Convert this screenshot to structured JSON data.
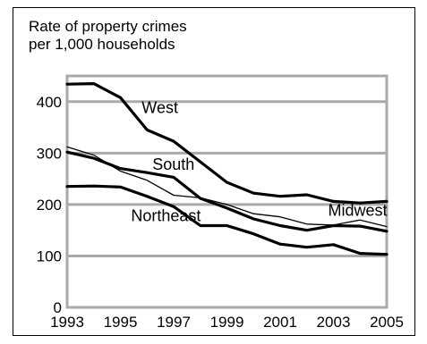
{
  "chart_data": {
    "type": "line",
    "title": "",
    "ylabel_lines": [
      "Rate of property crimes",
      "per 1,000 households"
    ],
    "xlabel": "",
    "x": [
      1993,
      1994,
      1995,
      1996,
      1997,
      1998,
      1999,
      2000,
      2001,
      2002,
      2003,
      2004,
      2005
    ],
    "x_ticks": [
      "1993",
      "1995",
      "1997",
      "1999",
      "2001",
      "2003",
      "2005"
    ],
    "y_ticks": [
      "0",
      "100",
      "200",
      "300",
      "400"
    ],
    "ylim": [
      0,
      450
    ],
    "xlim": [
      1993,
      2005
    ],
    "grid": true,
    "series": [
      {
        "name": "West",
        "style": "thick",
        "values": [
          434,
          435,
          408,
          345,
          323,
          283,
          243,
          222,
          216,
          219,
          206,
          203,
          206
        ]
      },
      {
        "name": "South",
        "style": "thick",
        "values": [
          302,
          290,
          270,
          262,
          253,
          212,
          193,
          172,
          159,
          150,
          159,
          158,
          148
        ]
      },
      {
        "name": "Midwest",
        "style": "thin",
        "values": [
          312,
          296,
          265,
          247,
          218,
          213,
          200,
          182,
          176,
          162,
          160,
          170,
          157
        ]
      },
      {
        "name": "Northeast",
        "style": "thick",
        "values": [
          235,
          236,
          234,
          216,
          196,
          159,
          159,
          143,
          123,
          117,
          122,
          105,
          103
        ]
      }
    ],
    "series_labels": [
      {
        "name": "West",
        "x": 1995.8,
        "y": 378
      },
      {
        "name": "South",
        "x": 1996.2,
        "y": 268
      },
      {
        "name": "Midwest",
        "x": 2002.8,
        "y": 178
      },
      {
        "name": "Northeast",
        "x": 1995.4,
        "y": 168
      }
    ],
    "colors": {
      "line": "#000000",
      "grid": "#aaaaaa",
      "plot_bg": "#ffffff"
    }
  }
}
